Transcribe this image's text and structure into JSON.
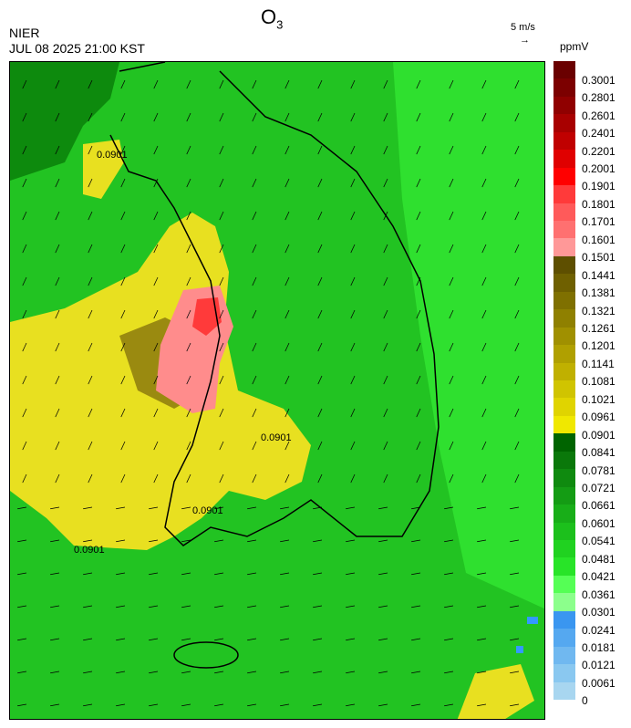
{
  "header": {
    "title": "O",
    "title_sub": "3",
    "agency": "NIER",
    "timestamp": "JUL 08 2025 21:00 KST",
    "ref_vector_label": "5 m/s",
    "ref_vector_arrow": "→",
    "unit": "ppmV"
  },
  "map": {
    "contour_labels": [
      "0.0901",
      "0.0901",
      "0.0901",
      "0.0901"
    ],
    "wind_direction": "northeasterly/easterly flow over sea, southwesterly toward west",
    "colors": {
      "background_green": "#22c322",
      "bright_green": "#2fe02f",
      "dark_green": "#0d8a0d",
      "yellow": "#e8e020",
      "olive": "#9a8a10",
      "pink": "#ff8c8c",
      "red": "#ff3a3a",
      "blue": "#3399ff"
    }
  },
  "legend": {
    "labels": [
      "0.3001",
      "0.2801",
      "0.2601",
      "0.2401",
      "0.2201",
      "0.2001",
      "0.1901",
      "0.1801",
      "0.1701",
      "0.1601",
      "0.1501",
      "0.1441",
      "0.1381",
      "0.1321",
      "0.1261",
      "0.1201",
      "0.1141",
      "0.1081",
      "0.1021",
      "0.0961",
      "0.0901",
      "0.0841",
      "0.0781",
      "0.0721",
      "0.0661",
      "0.0601",
      "0.0541",
      "0.0481",
      "0.0421",
      "0.0361",
      "0.0301",
      "0.0241",
      "0.0181",
      "0.0121",
      "0.0061",
      "0"
    ],
    "colors": [
      "#6a0000",
      "#7c0000",
      "#900000",
      "#a80000",
      "#c00000",
      "#e00000",
      "#ff0000",
      "#ff3a3a",
      "#ff5a5a",
      "#ff7070",
      "#ff9898",
      "#5e4f00",
      "#6f6000",
      "#7f7000",
      "#8f8000",
      "#a09000",
      "#b0a000",
      "#c0b000",
      "#d0c400",
      "#e0d400",
      "#f0e800",
      "#006400",
      "#0a780a",
      "#0f8a0f",
      "#149c14",
      "#18ae18",
      "#1cc01c",
      "#20d220",
      "#28e428",
      "#55ff55",
      "#8cff8c",
      "#3a96f0",
      "#55a8f0",
      "#70b8f0",
      "#8ac8f0",
      "#a8d6f0"
    ]
  }
}
